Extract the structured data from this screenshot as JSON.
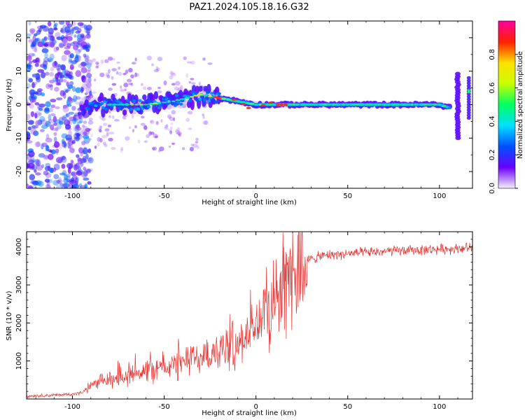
{
  "title": "PAZ1.2024.105.18.16.G32",
  "chart_data": [
    {
      "type": "heatmap",
      "xlabel": "Height of straight line (km)",
      "ylabel": "Frequency (Hz)",
      "xlim": [
        -125,
        118
      ],
      "ylim": [
        -25,
        25
      ],
      "xticks": [
        -100,
        -50,
        0,
        50,
        100
      ],
      "yticks": [
        -20,
        -10,
        0,
        10,
        20
      ],
      "colorbar": {
        "label": "Normalized spectral amplitude",
        "range": [
          0,
          1
        ],
        "ticks": [
          "0.0",
          "0.2",
          "0.4",
          "0.6",
          "0.8"
        ],
        "colormap": "gist_ncar",
        "colors": [
          "#f5f0ff",
          "#6a00ff",
          "#0050ff",
          "#00e0ff",
          "#00ff60",
          "#c8ff00",
          "#ffe000",
          "#ff2000",
          "#ff00a0"
        ]
      },
      "ridge": {
        "x": [
          -95,
          -80,
          -60,
          -45,
          -30,
          -20,
          -10,
          0,
          10,
          20,
          40,
          60,
          80,
          100,
          106,
          110,
          115,
          118
        ],
        "y": [
          0,
          0,
          0,
          1,
          3,
          2,
          1,
          0,
          0,
          0,
          0,
          0,
          0,
          0,
          -1,
          -8,
          2,
          5
        ]
      }
    },
    {
      "type": "line",
      "xlabel": "Height of straight line (km)",
      "ylabel": "SNR (10 * v/v)",
      "xlim": [
        -125,
        118
      ],
      "ylim": [
        0,
        4400
      ],
      "xticks": [
        -100,
        -50,
        0,
        50,
        100
      ],
      "yticks": [
        1000,
        2000,
        3000,
        4000
      ],
      "color": "#e8302e",
      "series": [
        {
          "x": [
            -125,
            -110,
            -100,
            -95,
            -90,
            -80,
            -70,
            -60,
            -50,
            -40,
            -30,
            -20,
            -10,
            -5,
            0,
            5,
            10,
            15,
            20,
            25,
            30,
            35,
            40,
            50,
            60,
            70,
            80,
            90,
            100,
            110,
            118
          ],
          "y": [
            80,
            100,
            130,
            160,
            350,
            500,
            650,
            750,
            850,
            950,
            1100,
            1250,
            1450,
            1700,
            1950,
            2250,
            2600,
            2950,
            3300,
            3550,
            3680,
            3750,
            3790,
            3820,
            3850,
            3880,
            3900,
            3920,
            3940,
            3960,
            3980
          ]
        }
      ]
    }
  ]
}
